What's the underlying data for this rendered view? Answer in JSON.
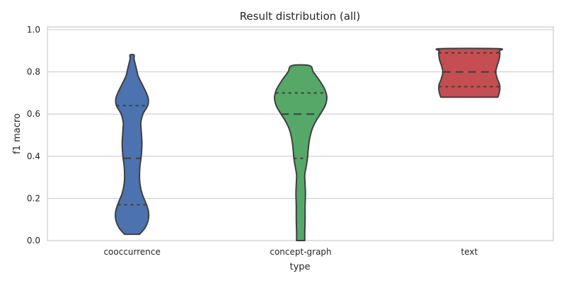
{
  "chart_data": {
    "type": "violin",
    "title": "Result distribution (all)",
    "xlabel": "type",
    "ylabel": "f1 macro",
    "ylim": [
      0.0,
      1.0
    ],
    "yticks": [
      "0.0",
      "0.2",
      "0.4",
      "0.6",
      "0.8",
      "1.0"
    ],
    "ytick_values": [
      0.0,
      0.2,
      0.4,
      0.6,
      0.8,
      1.0
    ],
    "grid": "horizontal",
    "categories": [
      "cooccurrence",
      "concept-graph",
      "text"
    ],
    "series": [
      {
        "category": "cooccurrence",
        "color": "#4c72b0",
        "min": 0.03,
        "max": 0.88,
        "quartiles": [
          0.17,
          0.39,
          0.64
        ],
        "profile": [
          [
            0.03,
            0.22
          ],
          [
            0.06,
            0.38
          ],
          [
            0.1,
            0.48
          ],
          [
            0.14,
            0.48
          ],
          [
            0.18,
            0.4
          ],
          [
            0.22,
            0.3
          ],
          [
            0.26,
            0.24
          ],
          [
            0.3,
            0.22
          ],
          [
            0.35,
            0.23
          ],
          [
            0.4,
            0.27
          ],
          [
            0.46,
            0.29
          ],
          [
            0.52,
            0.27
          ],
          [
            0.56,
            0.26
          ],
          [
            0.6,
            0.32
          ],
          [
            0.64,
            0.46
          ],
          [
            0.67,
            0.48
          ],
          [
            0.7,
            0.42
          ],
          [
            0.74,
            0.3
          ],
          [
            0.78,
            0.18
          ],
          [
            0.82,
            0.12
          ],
          [
            0.86,
            0.06
          ],
          [
            0.88,
            0.06
          ]
        ]
      },
      {
        "category": "concept-graph",
        "color": "#55a868",
        "min": 0.0,
        "max": 0.83,
        "quartiles": [
          0.39,
          0.6,
          0.7
        ],
        "profile": [
          [
            0.0,
            0.12
          ],
          [
            0.04,
            0.12
          ],
          [
            0.1,
            0.13
          ],
          [
            0.16,
            0.13
          ],
          [
            0.22,
            0.14
          ],
          [
            0.27,
            0.13
          ],
          [
            0.31,
            0.12
          ],
          [
            0.35,
            0.16
          ],
          [
            0.39,
            0.2
          ],
          [
            0.43,
            0.22
          ],
          [
            0.48,
            0.26
          ],
          [
            0.53,
            0.34
          ],
          [
            0.57,
            0.46
          ],
          [
            0.6,
            0.58
          ],
          [
            0.64,
            0.72
          ],
          [
            0.68,
            0.77
          ],
          [
            0.72,
            0.7
          ],
          [
            0.76,
            0.55
          ],
          [
            0.8,
            0.37
          ],
          [
            0.83,
            0.26
          ]
        ]
      },
      {
        "category": "text",
        "color": "#c44e52",
        "min": 0.68,
        "max": 0.91,
        "quartiles": [
          0.73,
          0.8,
          0.89
        ],
        "profile": [
          [
            0.68,
            0.84
          ],
          [
            0.7,
            0.88
          ],
          [
            0.72,
            0.9
          ],
          [
            0.74,
            0.89
          ],
          [
            0.77,
            0.82
          ],
          [
            0.8,
            0.78
          ],
          [
            0.83,
            0.82
          ],
          [
            0.86,
            0.88
          ],
          [
            0.89,
            0.9
          ],
          [
            0.9,
            0.88
          ],
          [
            0.91,
            0.84
          ]
        ]
      }
    ]
  }
}
